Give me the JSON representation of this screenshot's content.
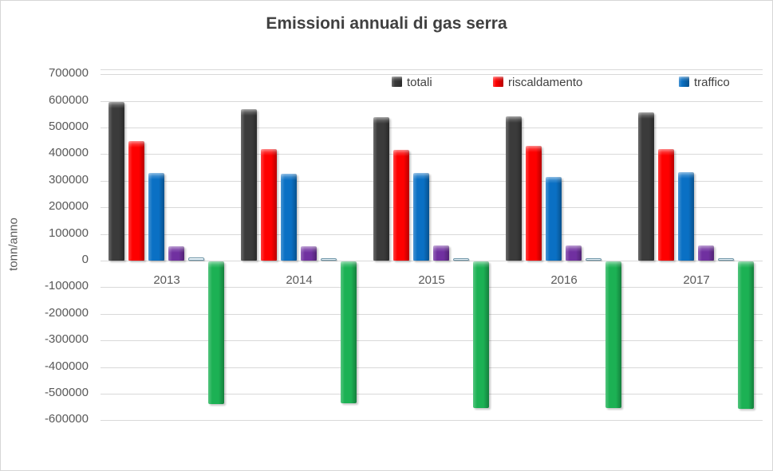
{
  "chart_data": {
    "type": "bar",
    "title": "Emissioni annuali di gas serra",
    "ylabel": "tonn/anno",
    "xlabel": "",
    "categories": [
      "2013",
      "2014",
      "2015",
      "2016",
      "2017"
    ],
    "series": [
      {
        "name": "totali",
        "color": "#3b3b3b",
        "values": [
          597000,
          570000,
          540000,
          543000,
          558000
        ]
      },
      {
        "name": "riscaldamento",
        "color": "#fe0000",
        "values": [
          450000,
          418000,
          415000,
          432000,
          418000
        ]
      },
      {
        "name": "traffico",
        "color": "#0a70c4",
        "values": [
          330000,
          325000,
          328000,
          315000,
          333000
        ]
      },
      {
        "name": "",
        "color": "#7030a0",
        "values": [
          53000,
          55000,
          56000,
          56000,
          56000
        ]
      },
      {
        "name": "",
        "color": "#d8eaf4",
        "border_color": "#6f96a8",
        "values": [
          11000,
          10000,
          9000,
          10000,
          9000
        ]
      },
      {
        "name": "",
        "color": "#1cb154",
        "values": [
          -535000,
          -533000,
          -552000,
          -550000,
          -553000
        ]
      }
    ],
    "legend_visible_labels": [
      "totali",
      "riscaldamento",
      "traffico"
    ],
    "legend_position": "top",
    "grid": "horizontal",
    "ylim": [
      -600000,
      700000
    ],
    "ytick_step": 100000,
    "ytick_labels": [
      "700000",
      "600000",
      "500000",
      "400000",
      "300000",
      "200000",
      "100000",
      "0",
      "-100000",
      "-200000",
      "-300000",
      "-400000",
      "-500000",
      "-600000"
    ],
    "colors": {
      "title_text": "#404040",
      "axis_text": "#595959",
      "gridline": "#d9d9d9",
      "background": "#ffffff"
    }
  }
}
